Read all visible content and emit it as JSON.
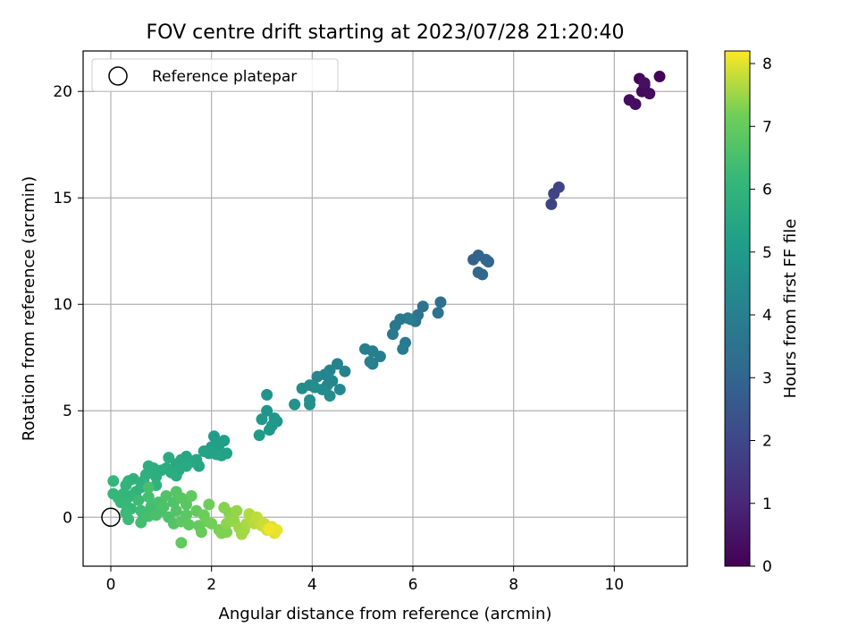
{
  "chart_data": {
    "type": "scatter",
    "title": "FOV centre drift starting at 2023/07/28 21:20:40",
    "xlabel": "Angular distance from reference (arcmin)",
    "ylabel": "Rotation from reference (arcmin)",
    "xlim": [
      -0.55,
      11.45
    ],
    "ylim": [
      -2.3,
      21.9
    ],
    "xticks": [
      0,
      2,
      4,
      6,
      8,
      10
    ],
    "yticks": [
      0,
      5,
      10,
      15,
      20
    ],
    "xtick_labels": [
      "0",
      "2",
      "4",
      "6",
      "8",
      "10"
    ],
    "ytick_labels": [
      "0",
      "5",
      "10",
      "15",
      "20"
    ],
    "grid": true,
    "legend": {
      "position": "top-left",
      "entries": [
        "Reference platepar"
      ]
    },
    "reference_point": {
      "x": 0,
      "y": 0,
      "marker": "open-circle"
    },
    "colorbar": {
      "label": "Hours from first FF file",
      "colormap": "viridis",
      "range": [
        0,
        8.2
      ],
      "ticks": [
        0,
        1,
        2,
        3,
        4,
        5,
        6,
        7,
        8
      ],
      "tick_labels": [
        "0",
        "1",
        "2",
        "3",
        "4",
        "5",
        "6",
        "7",
        "8"
      ]
    },
    "points": [
      {
        "x": 10.5,
        "y": 20.6,
        "h": 0.05
      },
      {
        "x": 10.9,
        "y": 20.7,
        "h": 0.1
      },
      {
        "x": 10.6,
        "y": 20.3,
        "h": 0.15
      },
      {
        "x": 10.55,
        "y": 20.0,
        "h": 0.2
      },
      {
        "x": 10.7,
        "y": 19.9,
        "h": 0.25
      },
      {
        "x": 10.3,
        "y": 19.6,
        "h": 0.3
      },
      {
        "x": 10.42,
        "y": 19.4,
        "h": 0.35
      },
      {
        "x": 10.6,
        "y": 20.4,
        "h": 0.4
      },
      {
        "x": 8.75,
        "y": 14.7,
        "h": 1.8
      },
      {
        "x": 8.8,
        "y": 15.2,
        "h": 1.85
      },
      {
        "x": 8.9,
        "y": 15.5,
        "h": 1.9
      },
      {
        "x": 7.2,
        "y": 12.1,
        "h": 2.9
      },
      {
        "x": 7.3,
        "y": 12.3,
        "h": 2.95
      },
      {
        "x": 7.45,
        "y": 12.1,
        "h": 3.0
      },
      {
        "x": 7.5,
        "y": 12.0,
        "h": 3.0
      },
      {
        "x": 7.3,
        "y": 11.5,
        "h": 3.05
      },
      {
        "x": 7.38,
        "y": 11.4,
        "h": 3.1
      },
      {
        "x": 6.55,
        "y": 10.1,
        "h": 3.4
      },
      {
        "x": 6.5,
        "y": 9.6,
        "h": 3.45
      },
      {
        "x": 6.2,
        "y": 9.9,
        "h": 3.5
      },
      {
        "x": 6.1,
        "y": 9.5,
        "h": 3.55
      },
      {
        "x": 6.05,
        "y": 9.2,
        "h": 3.6
      },
      {
        "x": 5.9,
        "y": 9.35,
        "h": 3.65
      },
      {
        "x": 5.75,
        "y": 9.3,
        "h": 3.7
      },
      {
        "x": 5.65,
        "y": 9.0,
        "h": 3.7
      },
      {
        "x": 5.6,
        "y": 8.6,
        "h": 3.75
      },
      {
        "x": 5.85,
        "y": 8.2,
        "h": 3.8
      },
      {
        "x": 5.8,
        "y": 7.9,
        "h": 3.85
      },
      {
        "x": 5.95,
        "y": 9.3,
        "h": 3.9
      },
      {
        "x": 5.35,
        "y": 7.55,
        "h": 3.9
      },
      {
        "x": 5.2,
        "y": 7.8,
        "h": 3.95
      },
      {
        "x": 5.05,
        "y": 7.9,
        "h": 4.0
      },
      {
        "x": 5.2,
        "y": 7.2,
        "h": 4.0
      },
      {
        "x": 5.15,
        "y": 7.3,
        "h": 4.05
      },
      {
        "x": 4.65,
        "y": 6.85,
        "h": 4.1
      },
      {
        "x": 4.5,
        "y": 7.2,
        "h": 4.15
      },
      {
        "x": 4.35,
        "y": 6.9,
        "h": 4.2
      },
      {
        "x": 4.25,
        "y": 6.7,
        "h": 4.2
      },
      {
        "x": 4.1,
        "y": 6.6,
        "h": 4.25
      },
      {
        "x": 4.4,
        "y": 6.4,
        "h": 4.3
      },
      {
        "x": 4.3,
        "y": 6.2,
        "h": 4.3
      },
      {
        "x": 4.55,
        "y": 6.0,
        "h": 4.35
      },
      {
        "x": 4.2,
        "y": 6.0,
        "h": 4.4
      },
      {
        "x": 4.35,
        "y": 5.7,
        "h": 4.45
      },
      {
        "x": 3.95,
        "y": 6.2,
        "h": 4.5
      },
      {
        "x": 3.8,
        "y": 6.05,
        "h": 4.5
      },
      {
        "x": 4.05,
        "y": 6.1,
        "h": 4.55
      },
      {
        "x": 3.95,
        "y": 5.5,
        "h": 4.6
      },
      {
        "x": 3.95,
        "y": 5.3,
        "h": 4.65
      },
      {
        "x": 3.65,
        "y": 5.3,
        "h": 4.7
      },
      {
        "x": 3.1,
        "y": 5.75,
        "h": 4.75
      },
      {
        "x": 3.1,
        "y": 5.0,
        "h": 4.8
      },
      {
        "x": 3.25,
        "y": 4.65,
        "h": 4.8
      },
      {
        "x": 3.3,
        "y": 4.5,
        "h": 4.85
      },
      {
        "x": 3.0,
        "y": 4.6,
        "h": 4.9
      },
      {
        "x": 3.2,
        "y": 4.3,
        "h": 4.9
      },
      {
        "x": 3.15,
        "y": 4.1,
        "h": 4.95
      },
      {
        "x": 2.95,
        "y": 3.85,
        "h": 5.0
      },
      {
        "x": 2.05,
        "y": 3.8,
        "h": 5.1
      },
      {
        "x": 2.25,
        "y": 3.6,
        "h": 5.15
      },
      {
        "x": 2.15,
        "y": 3.4,
        "h": 5.2
      },
      {
        "x": 2.0,
        "y": 3.3,
        "h": 5.2
      },
      {
        "x": 2.3,
        "y": 3.0,
        "h": 5.25
      },
      {
        "x": 2.2,
        "y": 2.9,
        "h": 5.3
      },
      {
        "x": 1.95,
        "y": 3.0,
        "h": 5.3
      },
      {
        "x": 1.85,
        "y": 3.1,
        "h": 5.35
      },
      {
        "x": 2.1,
        "y": 2.95,
        "h": 5.35
      },
      {
        "x": 1.7,
        "y": 2.7,
        "h": 5.45
      },
      {
        "x": 1.75,
        "y": 2.4,
        "h": 5.45
      },
      {
        "x": 1.5,
        "y": 2.85,
        "h": 5.5
      },
      {
        "x": 1.6,
        "y": 2.6,
        "h": 5.5
      },
      {
        "x": 1.4,
        "y": 2.7,
        "h": 5.55
      },
      {
        "x": 1.3,
        "y": 2.5,
        "h": 5.55
      },
      {
        "x": 1.5,
        "y": 2.4,
        "h": 5.6
      },
      {
        "x": 1.35,
        "y": 2.2,
        "h": 5.6
      },
      {
        "x": 1.2,
        "y": 2.1,
        "h": 5.65
      },
      {
        "x": 1.1,
        "y": 2.3,
        "h": 5.65
      },
      {
        "x": 1.3,
        "y": 1.95,
        "h": 5.7
      },
      {
        "x": 1.15,
        "y": 2.8,
        "h": 5.7
      },
      {
        "x": 1.0,
        "y": 2.2,
        "h": 5.75
      },
      {
        "x": 0.9,
        "y": 1.9,
        "h": 5.75
      },
      {
        "x": 0.85,
        "y": 2.3,
        "h": 5.8
      },
      {
        "x": 0.75,
        "y": 2.4,
        "h": 5.8
      },
      {
        "x": 0.7,
        "y": 2.0,
        "h": 5.85
      },
      {
        "x": 0.65,
        "y": 1.7,
        "h": 5.85
      },
      {
        "x": 0.9,
        "y": 1.5,
        "h": 5.9
      },
      {
        "x": 0.6,
        "y": 1.4,
        "h": 5.9
      },
      {
        "x": 0.45,
        "y": 1.8,
        "h": 5.95
      },
      {
        "x": 0.35,
        "y": 1.7,
        "h": 5.95
      },
      {
        "x": 0.3,
        "y": 1.5,
        "h": 6.0
      },
      {
        "x": 0.5,
        "y": 1.2,
        "h": 6.0
      },
      {
        "x": 0.4,
        "y": 1.0,
        "h": 6.05
      },
      {
        "x": 0.25,
        "y": 1.1,
        "h": 6.05
      },
      {
        "x": 0.05,
        "y": 1.7,
        "h": 6.1
      },
      {
        "x": 0.05,
        "y": 1.1,
        "h": 6.1
      },
      {
        "x": 0.15,
        "y": 0.9,
        "h": 6.15
      },
      {
        "x": 0.2,
        "y": 0.7,
        "h": 6.15
      },
      {
        "x": 0.3,
        "y": 0.6,
        "h": 6.2
      },
      {
        "x": 0.4,
        "y": 0.4,
        "h": 6.2
      },
      {
        "x": 0.3,
        "y": 0.2,
        "h": 6.25
      },
      {
        "x": 0.35,
        "y": -0.1,
        "h": 6.3
      },
      {
        "x": 0.55,
        "y": 0.8,
        "h": 6.3
      },
      {
        "x": 0.6,
        "y": 0.3,
        "h": 6.35
      },
      {
        "x": 0.65,
        "y": 0.1,
        "h": 6.35
      },
      {
        "x": 0.6,
        "y": -0.25,
        "h": 6.4
      },
      {
        "x": 0.8,
        "y": 0.5,
        "h": 6.4
      },
      {
        "x": 0.75,
        "y": 0.05,
        "h": 6.45
      },
      {
        "x": 0.75,
        "y": 0.95,
        "h": 6.45
      },
      {
        "x": 0.75,
        "y": 1.4,
        "h": 6.5
      },
      {
        "x": 0.95,
        "y": 0.7,
        "h": 6.5
      },
      {
        "x": 1.0,
        "y": 0.3,
        "h": 6.55
      },
      {
        "x": 0.9,
        "y": 0.1,
        "h": 6.55
      },
      {
        "x": 1.05,
        "y": 0.5,
        "h": 6.6
      },
      {
        "x": 1.15,
        "y": 0.0,
        "h": 6.6
      },
      {
        "x": 1.1,
        "y": 1.0,
        "h": 6.65
      },
      {
        "x": 1.25,
        "y": 0.7,
        "h": 6.65
      },
      {
        "x": 1.3,
        "y": 0.3,
        "h": 6.7
      },
      {
        "x": 1.25,
        "y": -0.3,
        "h": 6.7
      },
      {
        "x": 1.3,
        "y": 1.2,
        "h": 6.75
      },
      {
        "x": 1.4,
        "y": 0.9,
        "h": 6.8
      },
      {
        "x": 1.5,
        "y": 0.6,
        "h": 6.8
      },
      {
        "x": 1.5,
        "y": 0.1,
        "h": 6.85
      },
      {
        "x": 1.4,
        "y": -0.2,
        "h": 6.85
      },
      {
        "x": 1.55,
        "y": -0.35,
        "h": 6.9
      },
      {
        "x": 1.6,
        "y": 1.0,
        "h": 6.9
      },
      {
        "x": 1.4,
        "y": -1.2,
        "h": 6.95
      },
      {
        "x": 1.7,
        "y": 0.3,
        "h": 7.0
      },
      {
        "x": 1.75,
        "y": -0.4,
        "h": 7.0
      },
      {
        "x": 1.8,
        "y": -0.7,
        "h": 7.05
      },
      {
        "x": 1.85,
        "y": 0.1,
        "h": 7.1
      },
      {
        "x": 1.95,
        "y": 0.6,
        "h": 7.15
      },
      {
        "x": 1.9,
        "y": -0.2,
        "h": 7.15
      },
      {
        "x": 2.0,
        "y": -0.3,
        "h": 7.2
      },
      {
        "x": 2.15,
        "y": -0.6,
        "h": 7.25
      },
      {
        "x": 2.2,
        "y": -0.75,
        "h": 7.3
      },
      {
        "x": 2.3,
        "y": -0.7,
        "h": 7.3
      },
      {
        "x": 2.25,
        "y": 0.45,
        "h": 7.35
      },
      {
        "x": 2.35,
        "y": 0.2,
        "h": 7.35
      },
      {
        "x": 2.4,
        "y": 0.0,
        "h": 7.4
      },
      {
        "x": 2.3,
        "y": -0.3,
        "h": 7.4
      },
      {
        "x": 2.5,
        "y": 0.3,
        "h": 7.45
      },
      {
        "x": 2.45,
        "y": -0.2,
        "h": 7.45
      },
      {
        "x": 2.55,
        "y": -0.5,
        "h": 7.5
      },
      {
        "x": 2.6,
        "y": -0.8,
        "h": 7.55
      },
      {
        "x": 2.65,
        "y": -0.6,
        "h": 7.55
      },
      {
        "x": 2.7,
        "y": -0.3,
        "h": 7.6
      },
      {
        "x": 2.75,
        "y": 0.15,
        "h": 7.65
      },
      {
        "x": 2.8,
        "y": -0.1,
        "h": 7.65
      },
      {
        "x": 2.85,
        "y": -0.3,
        "h": 7.7
      },
      {
        "x": 2.9,
        "y": 0.0,
        "h": 7.75
      },
      {
        "x": 2.95,
        "y": -0.2,
        "h": 7.75
      },
      {
        "x": 3.0,
        "y": -0.4,
        "h": 7.8
      },
      {
        "x": 3.05,
        "y": -0.3,
        "h": 7.85
      },
      {
        "x": 3.1,
        "y": -0.6,
        "h": 7.9
      },
      {
        "x": 3.2,
        "y": -0.45,
        "h": 7.95
      },
      {
        "x": 3.25,
        "y": -0.75,
        "h": 8.0
      },
      {
        "x": 3.3,
        "y": -0.6,
        "h": 8.05
      },
      {
        "x": 3.15,
        "y": -0.55,
        "h": 8.1
      }
    ]
  }
}
